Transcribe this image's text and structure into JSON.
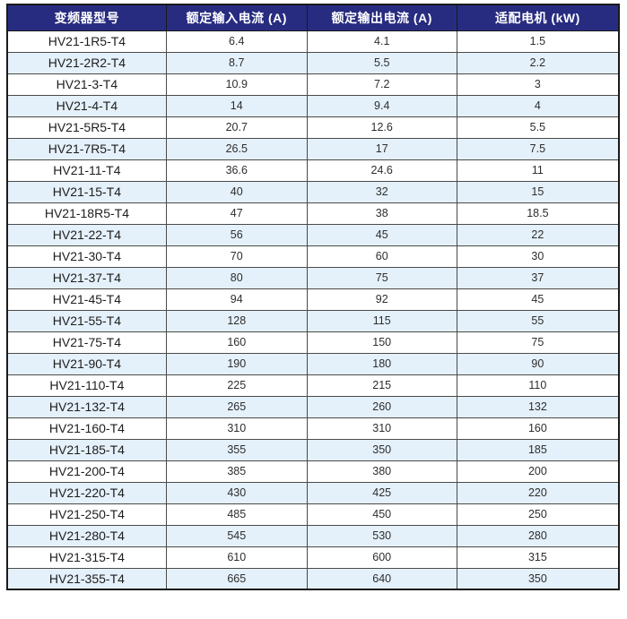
{
  "colors": {
    "header_bg": "#272c80",
    "header_text": "#ffffff",
    "row_bg": "#ffffff",
    "row_alt_bg": "#e4f0fa",
    "border_outer": "#1a1a1a",
    "border_inner": "#4a4a4a",
    "body_text": "#2e2e2e"
  },
  "table": {
    "columns": [
      "变频器型号",
      "额定输入电流 (A)",
      "额定输出电流 (A)",
      "适配电机 (kW)"
    ],
    "rows": [
      {
        "model": "HV21-1R5-T4",
        "input_current": "6.4",
        "output_current": "4.1",
        "motor_kw": "1.5"
      },
      {
        "model": "HV21-2R2-T4",
        "input_current": "8.7",
        "output_current": "5.5",
        "motor_kw": "2.2"
      },
      {
        "model": "HV21-3-T4",
        "input_current": "10.9",
        "output_current": "7.2",
        "motor_kw": "3"
      },
      {
        "model": "HV21-4-T4",
        "input_current": "14",
        "output_current": "9.4",
        "motor_kw": "4"
      },
      {
        "model": "HV21-5R5-T4",
        "input_current": "20.7",
        "output_current": "12.6",
        "motor_kw": "5.5"
      },
      {
        "model": "HV21-7R5-T4",
        "input_current": "26.5",
        "output_current": "17",
        "motor_kw": "7.5"
      },
      {
        "model": "HV21-11-T4",
        "input_current": "36.6",
        "output_current": "24.6",
        "motor_kw": "11"
      },
      {
        "model": "HV21-15-T4",
        "input_current": "40",
        "output_current": "32",
        "motor_kw": "15"
      },
      {
        "model": "HV21-18R5-T4",
        "input_current": "47",
        "output_current": "38",
        "motor_kw": "18.5"
      },
      {
        "model": "HV21-22-T4",
        "input_current": "56",
        "output_current": "45",
        "motor_kw": "22"
      },
      {
        "model": "HV21-30-T4",
        "input_current": "70",
        "output_current": "60",
        "motor_kw": "30"
      },
      {
        "model": "HV21-37-T4",
        "input_current": "80",
        "output_current": "75",
        "motor_kw": "37"
      },
      {
        "model": "HV21-45-T4",
        "input_current": "94",
        "output_current": "92",
        "motor_kw": "45"
      },
      {
        "model": "HV21-55-T4",
        "input_current": "128",
        "output_current": "115",
        "motor_kw": "55"
      },
      {
        "model": "HV21-75-T4",
        "input_current": "160",
        "output_current": "150",
        "motor_kw": "75"
      },
      {
        "model": "HV21-90-T4",
        "input_current": "190",
        "output_current": "180",
        "motor_kw": "90"
      },
      {
        "model": "HV21-110-T4",
        "input_current": "225",
        "output_current": "215",
        "motor_kw": "110"
      },
      {
        "model": "HV21-132-T4",
        "input_current": "265",
        "output_current": "260",
        "motor_kw": "132"
      },
      {
        "model": "HV21-160-T4",
        "input_current": "310",
        "output_current": "310",
        "motor_kw": "160"
      },
      {
        "model": "HV21-185-T4",
        "input_current": "355",
        "output_current": "350",
        "motor_kw": "185"
      },
      {
        "model": "HV21-200-T4",
        "input_current": "385",
        "output_current": "380",
        "motor_kw": "200"
      },
      {
        "model": "HV21-220-T4",
        "input_current": "430",
        "output_current": "425",
        "motor_kw": "220"
      },
      {
        "model": "HV21-250-T4",
        "input_current": "485",
        "output_current": "450",
        "motor_kw": "250"
      },
      {
        "model": "HV21-280-T4",
        "input_current": "545",
        "output_current": "530",
        "motor_kw": "280"
      },
      {
        "model": "HV21-315-T4",
        "input_current": "610",
        "output_current": "600",
        "motor_kw": "315"
      },
      {
        "model": "HV21-355-T4",
        "input_current": "665",
        "output_current": "640",
        "motor_kw": "350"
      }
    ]
  }
}
